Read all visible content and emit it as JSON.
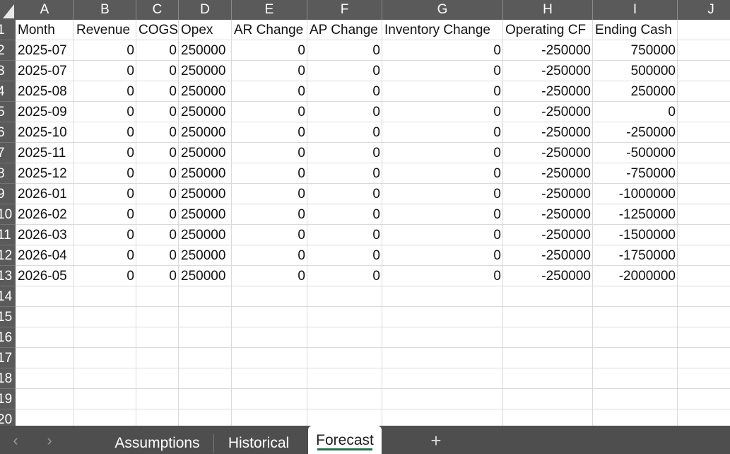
{
  "columns": [
    "A",
    "B",
    "C",
    "D",
    "E",
    "F",
    "G",
    "H",
    "I",
    "J"
  ],
  "rows": [
    "1",
    "2",
    "3",
    "4",
    "5",
    "6",
    "7",
    "8",
    "9",
    "10",
    "11",
    "12",
    "13",
    "14",
    "15",
    "16",
    "17",
    "18",
    "19",
    "20"
  ],
  "headers": [
    "Month",
    "Revenue",
    "COGS",
    "Opex",
    "AR Change",
    "AP Change",
    "Inventory Change",
    "Operating CF",
    "Ending Cash"
  ],
  "data": [
    [
      "2025-07",
      "0",
      "0",
      "250000",
      "0",
      "0",
      "0",
      "-250000",
      "750000"
    ],
    [
      "2025-07",
      "0",
      "0",
      "250000",
      "0",
      "0",
      "0",
      "-250000",
      "500000"
    ],
    [
      "2025-08",
      "0",
      "0",
      "250000",
      "0",
      "0",
      "0",
      "-250000",
      "250000"
    ],
    [
      "2025-09",
      "0",
      "0",
      "250000",
      "0",
      "0",
      "0",
      "-250000",
      "0"
    ],
    [
      "2025-10",
      "0",
      "0",
      "250000",
      "0",
      "0",
      "0",
      "-250000",
      "-250000"
    ],
    [
      "2025-11",
      "0",
      "0",
      "250000",
      "0",
      "0",
      "0",
      "-250000",
      "-500000"
    ],
    [
      "2025-12",
      "0",
      "0",
      "250000",
      "0",
      "0",
      "0",
      "-250000",
      "-750000"
    ],
    [
      "2026-01",
      "0",
      "0",
      "250000",
      "0",
      "0",
      "0",
      "-250000",
      "-1000000"
    ],
    [
      "2026-02",
      "0",
      "0",
      "250000",
      "0",
      "0",
      "0",
      "-250000",
      "-1250000"
    ],
    [
      "2026-03",
      "0",
      "0",
      "250000",
      "0",
      "0",
      "0",
      "-250000",
      "-1500000"
    ],
    [
      "2026-04",
      "0",
      "0",
      "250000",
      "0",
      "0",
      "0",
      "-250000",
      "-1750000"
    ],
    [
      "2026-05",
      "0",
      "0",
      "250000",
      "0",
      "0",
      "0",
      "-250000",
      "-2000000"
    ]
  ],
  "sheet_tabs": {
    "assumptions": "Assumptions",
    "historical": "Historical",
    "forecast": "Forecast",
    "active": "Forecast"
  },
  "nav": {
    "prev_icon": "chevron-left-icon",
    "next_icon": "chevron-right-icon",
    "add_icon": "plus-icon"
  },
  "colors": {
    "header_bg": "#5a5a5a",
    "tab_bar_bg": "#4e4e4e",
    "active_tab_underline": "#1e7145",
    "gridline": "#dadada"
  }
}
